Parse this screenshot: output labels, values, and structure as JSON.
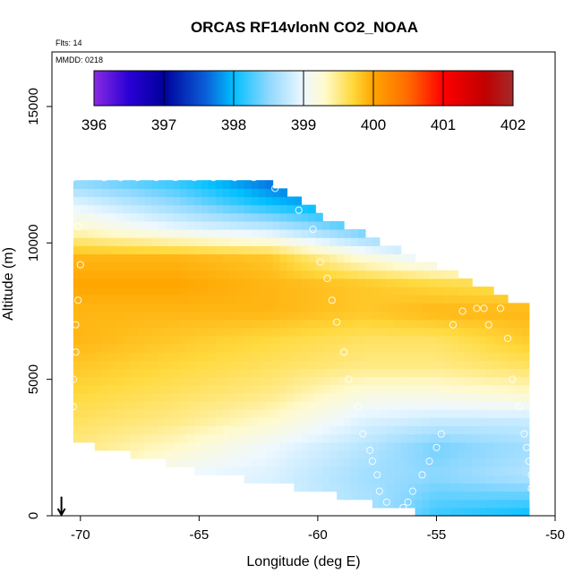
{
  "chart_data": {
    "type": "heatmap",
    "title": "ORCAS RF14vlonN CO2_NOAA",
    "flights_label": "Flts: 14",
    "date_label": "MMDD: 0218",
    "xlabel": "Longitude (deg E)",
    "ylabel": "Altitude (m)",
    "xlim": [
      -71.2,
      -50
    ],
    "ylim": [
      0,
      17000
    ],
    "x_ticks": [
      -70,
      -65,
      -60,
      -55,
      -50
    ],
    "y_ticks": [
      0,
      5000,
      10000,
      15000
    ],
    "colorbar": {
      "ticks": [
        396,
        397,
        398,
        399,
        400,
        401,
        402
      ],
      "range": [
        396,
        402
      ],
      "stops": [
        {
          "v": 396.0,
          "c": "#8a2be2"
        },
        {
          "v": 396.5,
          "c": "#2a00d5"
        },
        {
          "v": 397.0,
          "c": "#00009c"
        },
        {
          "v": 397.6,
          "c": "#0a5fd8"
        },
        {
          "v": 398.0,
          "c": "#00bfff"
        },
        {
          "v": 398.5,
          "c": "#8fd8ff"
        },
        {
          "v": 399.0,
          "c": "#eef8ff"
        },
        {
          "v": 399.3,
          "c": "#fffacd"
        },
        {
          "v": 399.7,
          "c": "#ffd93d"
        },
        {
          "v": 400.0,
          "c": "#ffa500"
        },
        {
          "v": 400.5,
          "c": "#ff6a00"
        },
        {
          "v": 401.0,
          "c": "#ff0000"
        },
        {
          "v": 401.6,
          "c": "#c00000"
        },
        {
          "v": 402.0,
          "c": "#a52a2a"
        }
      ]
    },
    "domain": {
      "top_altitude": [
        [
          -70.3,
          12400
        ],
        [
          -62.5,
          12400
        ],
        [
          -60.8,
          11600
        ],
        [
          -59.8,
          11000
        ],
        [
          -57.0,
          9900
        ],
        [
          -51.2,
          7700
        ]
      ],
      "bottom_altitude": [
        [
          -70.6,
          2800
        ],
        [
          -68.0,
          2300
        ],
        [
          -65.0,
          1600
        ],
        [
          -62.0,
          1200
        ],
        [
          -59.0,
          700
        ],
        [
          -57.0,
          300
        ],
        [
          -55.0,
          0
        ],
        [
          -51.0,
          0
        ]
      ]
    },
    "field_anchors": [
      {
        "alt": 0,
        "x": [
          -70,
          -66,
          -62,
          -58,
          -55,
          -51
        ],
        "v": [
          399.5,
          399.0,
          398.9,
          398.7,
          398.2,
          398.0
        ]
      },
      {
        "alt": 1500,
        "x": [
          -70,
          -66,
          -62,
          -58,
          -55,
          -51
        ],
        "v": [
          399.5,
          399.0,
          398.9,
          398.6,
          398.5,
          398.7
        ]
      },
      {
        "alt": 2500,
        "x": [
          -70,
          -66,
          -62,
          -58,
          -55,
          -51
        ],
        "v": [
          399.5,
          399.3,
          399.0,
          398.7,
          398.4,
          398.6
        ]
      },
      {
        "alt": 3500,
        "x": [
          -70,
          -66,
          -62,
          -58,
          -55,
          -51
        ],
        "v": [
          399.6,
          399.5,
          399.3,
          398.9,
          398.8,
          398.8
        ]
      },
      {
        "alt": 4500,
        "x": [
          -70,
          -66,
          -62,
          -58,
          -55,
          -51
        ],
        "v": [
          399.7,
          399.6,
          399.5,
          399.2,
          399.2,
          399.3
        ]
      },
      {
        "alt": 5500,
        "x": [
          -70,
          -66,
          -62,
          -58,
          -55,
          -51
        ],
        "v": [
          399.8,
          399.7,
          399.6,
          399.5,
          399.5,
          399.6
        ]
      },
      {
        "alt": 6500,
        "x": [
          -70,
          -66,
          -62,
          -58,
          -55,
          -51
        ],
        "v": [
          399.9,
          399.8,
          399.7,
          399.6,
          399.6,
          399.8
        ]
      },
      {
        "alt": 7500,
        "x": [
          -70,
          -66,
          -62,
          -58,
          -55,
          -51
        ],
        "v": [
          399.9,
          399.9,
          399.9,
          399.8,
          399.9,
          399.9
        ]
      },
      {
        "alt": 8500,
        "x": [
          -70,
          -66,
          -62,
          -58,
          -55,
          -51
        ],
        "v": [
          400.0,
          400.0,
          399.9,
          399.8,
          399.7,
          399.6
        ]
      },
      {
        "alt": 9500,
        "x": [
          -70,
          -66,
          -62,
          -58,
          -55,
          -51
        ],
        "v": [
          399.9,
          399.9,
          399.8,
          399.2,
          398.9,
          398.8
        ]
      },
      {
        "alt": 10500,
        "x": [
          -70,
          -66,
          -62,
          -58,
          -55,
          -51
        ],
        "v": [
          399.3,
          399.0,
          398.8,
          398.3,
          398.1,
          398.0
        ]
      },
      {
        "alt": 11500,
        "x": [
          -70,
          -66,
          -62,
          -58,
          -55,
          -51
        ],
        "v": [
          398.9,
          398.5,
          398.0,
          397.7,
          397.7,
          397.7
        ]
      },
      {
        "alt": 12400,
        "x": [
          -70,
          -66,
          -62,
          -58,
          -55,
          -51
        ],
        "v": [
          398.4,
          398.1,
          397.6,
          397.2,
          397.2,
          397.2
        ]
      }
    ],
    "sample_points": [
      [
        -70.3,
        12400
      ],
      [
        -69.0,
        12400
      ],
      [
        -68.3,
        12400
      ],
      [
        -67.6,
        12400
      ],
      [
        -66.8,
        12400
      ],
      [
        -66.0,
        12400
      ],
      [
        -65.2,
        12400
      ],
      [
        -64.4,
        12400
      ],
      [
        -63.5,
        12400
      ],
      [
        -62.7,
        12400
      ],
      [
        -61.8,
        12000
      ],
      [
        -60.8,
        11200
      ],
      [
        -60.2,
        10500
      ],
      [
        -59.9,
        9300
      ],
      [
        -59.6,
        8700
      ],
      [
        -59.4,
        7900
      ],
      [
        -59.2,
        7100
      ],
      [
        -70.1,
        10600
      ],
      [
        -70.0,
        9200
      ],
      [
        -70.1,
        7900
      ],
      [
        -70.2,
        7000
      ],
      [
        -70.2,
        6000
      ],
      [
        -70.3,
        5000
      ],
      [
        -70.3,
        4000
      ],
      [
        -58.9,
        6000
      ],
      [
        -58.7,
        5000
      ],
      [
        -58.3,
        4000
      ],
      [
        -58.1,
        3000
      ],
      [
        -57.8,
        2400
      ],
      [
        -57.7,
        2000
      ],
      [
        -57.5,
        1500
      ],
      [
        -57.4,
        900
      ],
      [
        -57.1,
        500
      ],
      [
        -56.9,
        100
      ],
      [
        -56.4,
        300
      ],
      [
        -56.2,
        500
      ],
      [
        -56.0,
        900
      ],
      [
        -55.6,
        1500
      ],
      [
        -55.3,
        2000
      ],
      [
        -55.0,
        2500
      ],
      [
        -54.8,
        3000
      ],
      [
        -54.3,
        7000
      ],
      [
        -53.9,
        7500
      ],
      [
        -53.3,
        7600
      ],
      [
        -53.0,
        7600
      ],
      [
        -52.8,
        7000
      ],
      [
        -52.3,
        7600
      ],
      [
        -52.0,
        6500
      ],
      [
        -51.8,
        5000
      ],
      [
        -51.5,
        4000
      ],
      [
        -51.3,
        3000
      ],
      [
        -51.2,
        2500
      ],
      [
        -51.1,
        2000
      ],
      [
        -51.0,
        1500
      ],
      [
        -51.0,
        1000
      ],
      [
        -50.9,
        900
      ],
      [
        -50.9,
        500
      ],
      [
        -50.9,
        100
      ]
    ],
    "arrow": {
      "x": -70.8,
      "y_from": 700,
      "y_to": 0
    }
  }
}
